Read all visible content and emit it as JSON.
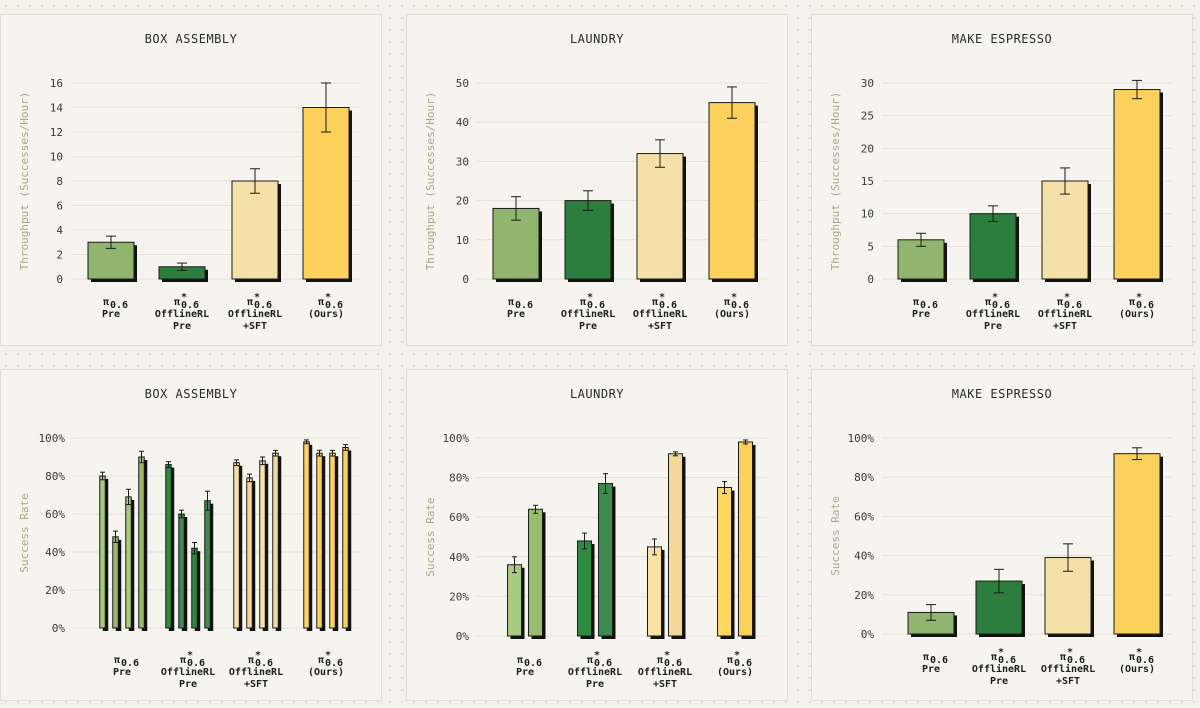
{
  "chart_data": [
    {
      "type": "bar",
      "title": "BOX ASSEMBLY",
      "ylabel": "Throughput (Successes/Hour)",
      "ylim": [
        0,
        16
      ],
      "yticks": [
        0,
        2,
        4,
        6,
        8,
        10,
        12,
        14,
        16
      ],
      "categories": [
        {
          "sym": "π",
          "sup": "",
          "sub": "0.6",
          "lines": [
            "Pre"
          ]
        },
        {
          "sym": "π",
          "sup": "*",
          "sub": "0.6",
          "lines": [
            "OfflineRL",
            "Pre"
          ]
        },
        {
          "sym": "π",
          "sup": "*",
          "sub": "0.6",
          "lines": [
            "OfflineRL",
            "+SFT"
          ]
        },
        {
          "sym": "π",
          "sup": "*",
          "sub": "0.6",
          "lines": [
            "(Ours)"
          ]
        }
      ],
      "series": [
        {
          "name": "throughput",
          "values": [
            [
              3.0
            ],
            [
              1.0
            ],
            [
              8.0
            ],
            [
              14.0
            ]
          ],
          "errors": [
            [
              0.5
            ],
            [
              0.3
            ],
            [
              1.0
            ],
            [
              2.0
            ]
          ]
        }
      ]
    },
    {
      "type": "bar",
      "title": "LAUNDRY",
      "ylabel": "Throughput (Successes/Hour)",
      "ylim": [
        0,
        50
      ],
      "yticks": [
        0,
        10,
        20,
        30,
        40,
        50
      ],
      "categories": [
        {
          "sym": "π",
          "sup": "",
          "sub": "0.6",
          "lines": [
            "Pre"
          ]
        },
        {
          "sym": "π",
          "sup": "*",
          "sub": "0.6",
          "lines": [
            "OfflineRL",
            "Pre"
          ]
        },
        {
          "sym": "π",
          "sup": "*",
          "sub": "0.6",
          "lines": [
            "OfflineRL",
            "+SFT"
          ]
        },
        {
          "sym": "π",
          "sup": "*",
          "sub": "0.6",
          "lines": [
            "(Ours)"
          ]
        }
      ],
      "series": [
        {
          "name": "throughput",
          "values": [
            [
              18
            ],
            [
              20
            ],
            [
              32
            ],
            [
              45
            ]
          ],
          "errors": [
            [
              3
            ],
            [
              2.5
            ],
            [
              3.5
            ],
            [
              4
            ]
          ]
        }
      ]
    },
    {
      "type": "bar",
      "title": "MAKE ESPRESSO",
      "ylabel": "Throughput (Successes/Hour)",
      "ylim": [
        0,
        30
      ],
      "yticks": [
        0,
        5,
        10,
        15,
        20,
        25,
        30
      ],
      "categories": [
        {
          "sym": "π",
          "sup": "",
          "sub": "0.6",
          "lines": [
            "Pre"
          ]
        },
        {
          "sym": "π",
          "sup": "*",
          "sub": "0.6",
          "lines": [
            "OfflineRL",
            "Pre"
          ]
        },
        {
          "sym": "π",
          "sup": "*",
          "sub": "0.6",
          "lines": [
            "OfflineRL",
            "+SFT"
          ]
        },
        {
          "sym": "π",
          "sup": "*",
          "sub": "0.6",
          "lines": [
            "(Ours)"
          ]
        }
      ],
      "series": [
        {
          "name": "throughput",
          "values": [
            [
              6
            ],
            [
              10
            ],
            [
              15
            ],
            [
              29
            ]
          ],
          "errors": [
            [
              1
            ],
            [
              1.2
            ],
            [
              2
            ],
            [
              1.4
            ]
          ]
        }
      ]
    },
    {
      "type": "bar",
      "title": "BOX ASSEMBLY",
      "ylabel": "Success Rate",
      "ylim": [
        0,
        100
      ],
      "yticks": [
        0,
        20,
        40,
        60,
        80,
        100
      ],
      "percent": true,
      "categories": [
        {
          "sym": "π",
          "sup": "",
          "sub": "0.6",
          "lines": [
            "Pre"
          ]
        },
        {
          "sym": "π",
          "sup": "*",
          "sub": "0.6",
          "lines": [
            "OfflineRL",
            "Pre"
          ]
        },
        {
          "sym": "π",
          "sup": "*",
          "sub": "0.6",
          "lines": [
            "OfflineRL",
            "+SFT"
          ]
        },
        {
          "sym": "π",
          "sup": "*",
          "sub": "0.6",
          "lines": [
            "(Ours)"
          ]
        }
      ],
      "series": [
        {
          "name": "success_rate",
          "values": [
            [
              80,
              48,
              69,
              90
            ],
            [
              86,
              60,
              42,
              67
            ],
            [
              87,
              79,
              88,
              92
            ],
            [
              98,
              92,
              92,
              95
            ]
          ],
          "errors": [
            [
              2,
              3,
              4,
              3
            ],
            [
              1.5,
              2,
              3,
              5
            ],
            [
              1.5,
              2,
              2,
              1.5
            ],
            [
              1,
              1.5,
              1.5,
              1.5
            ]
          ]
        }
      ]
    },
    {
      "type": "bar",
      "title": "LAUNDRY",
      "ylabel": "Success Rate",
      "ylim": [
        0,
        100
      ],
      "yticks": [
        0,
        20,
        40,
        60,
        80,
        100
      ],
      "percent": true,
      "categories": [
        {
          "sym": "π",
          "sup": "",
          "sub": "0.6",
          "lines": [
            "Pre"
          ]
        },
        {
          "sym": "π",
          "sup": "*",
          "sub": "0.6",
          "lines": [
            "OfflineRL",
            "Pre"
          ]
        },
        {
          "sym": "π",
          "sup": "*",
          "sub": "0.6",
          "lines": [
            "OfflineRL",
            "+SFT"
          ]
        },
        {
          "sym": "π",
          "sup": "*",
          "sub": "0.6",
          "lines": [
            "(Ours)"
          ]
        }
      ],
      "series": [
        {
          "name": "success_rate",
          "values": [
            [
              36,
              64
            ],
            [
              48,
              77
            ],
            [
              45,
              92
            ],
            [
              75,
              98
            ]
          ],
          "errors": [
            [
              4,
              2
            ],
            [
              4,
              5
            ],
            [
              4,
              1
            ],
            [
              3,
              1
            ]
          ]
        }
      ]
    },
    {
      "type": "bar",
      "title": "MAKE ESPRESSO",
      "ylabel": "Success Rate",
      "ylim": [
        0,
        100
      ],
      "yticks": [
        0,
        20,
        40,
        60,
        80,
        100
      ],
      "percent": true,
      "categories": [
        {
          "sym": "π",
          "sup": "",
          "sub": "0.6",
          "lines": [
            "Pre"
          ]
        },
        {
          "sym": "π",
          "sup": "*",
          "sub": "0.6",
          "lines": [
            "OfflineRL",
            "Pre"
          ]
        },
        {
          "sym": "π",
          "sup": "*",
          "sub": "0.6",
          "lines": [
            "OfflineRL",
            "+SFT"
          ]
        },
        {
          "sym": "π",
          "sup": "*",
          "sub": "0.6",
          "lines": [
            "(Ours)"
          ]
        }
      ],
      "series": [
        {
          "name": "success_rate",
          "values": [
            [
              11
            ],
            [
              27
            ],
            [
              39
            ],
            [
              92
            ]
          ],
          "errors": [
            [
              4
            ],
            [
              6
            ],
            [
              7
            ],
            [
              3
            ]
          ]
        }
      ]
    }
  ],
  "colors": {
    "pre": "#8fb56e",
    "offline_pre": "#2b7e3d",
    "offline_sft": "#f5e1a8",
    "ours": "#fbd15c",
    "shadow": "#121212",
    "bar_border": "#1a1a1a",
    "panel_bg": "#f6f4ee",
    "panel_border": "#e1ddd0"
  },
  "subbar_colors": {
    "pre": [
      "#a7ca7e",
      "#97bc6f"
    ],
    "offline_pre": [
      "#2f8a41",
      "#3f8a4f"
    ],
    "offline_sft": [
      "#f7e2a4",
      "#f2d99a"
    ],
    "ours": [
      "#fcd562",
      "#f9d05a"
    ]
  }
}
